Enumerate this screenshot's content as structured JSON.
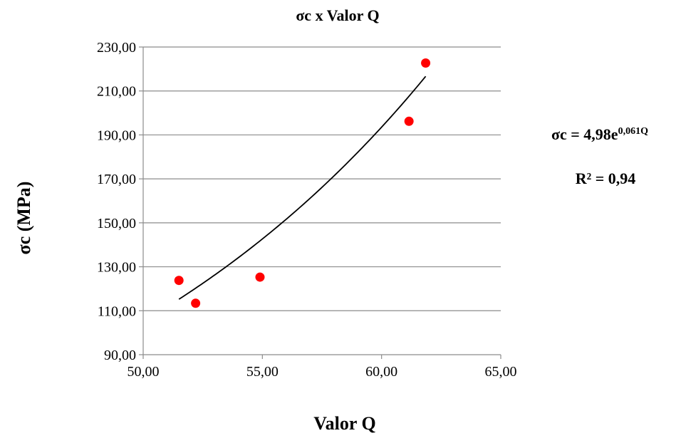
{
  "chart_data": {
    "type": "scatter",
    "title": "σc x Valor Q",
    "xlabel": "Valor Q",
    "ylabel": "σc (MPa)",
    "xlim": [
      50,
      65
    ],
    "ylim": [
      90,
      230
    ],
    "x_ticks": [
      "50,00",
      "55,00",
      "60,00",
      "65,00"
    ],
    "y_ticks": [
      "90,00",
      "110,00",
      "130,00",
      "150,00",
      "170,00",
      "190,00",
      "210,00",
      "230,00"
    ],
    "grid": true,
    "series": [
      {
        "points": [
          {
            "x": 51.5,
            "y": 123.8
          },
          {
            "x": 52.2,
            "y": 113.4
          },
          {
            "x": 54.9,
            "y": 125.3
          },
          {
            "x": 61.15,
            "y": 196.2
          },
          {
            "x": 61.85,
            "y": 222.7
          }
        ]
      }
    ],
    "trendline": {
      "type": "exponential",
      "a": 4.98,
      "b": 0.061,
      "x_range": [
        51.5,
        61.85
      ],
      "equation": {
        "lhs": "σc = 4,98e",
        "exponent": "0,061Q",
        "r2": "R² = 0,94"
      }
    }
  }
}
